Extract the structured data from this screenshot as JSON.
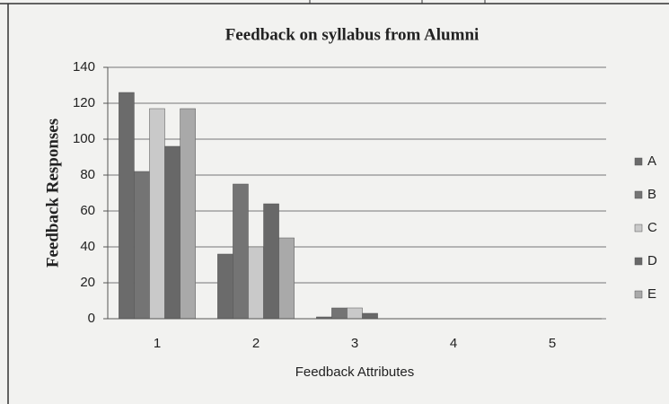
{
  "chart_data": {
    "type": "bar",
    "title": "Feedback on syllabus from Alumni",
    "x_label": "Feedback Attributes",
    "y_label": "Feedback Responses",
    "categories": [
      "1",
      "2",
      "3",
      "4",
      "5"
    ],
    "series": [
      {
        "name": "A",
        "color": "#6b6b6b",
        "values": [
          126,
          36,
          1,
          0,
          0
        ]
      },
      {
        "name": "B",
        "color": "#747474",
        "values": [
          82,
          75,
          6,
          0,
          0
        ]
      },
      {
        "name": "C",
        "color": "#c9c9c9",
        "values": [
          117,
          40,
          6,
          0,
          0
        ]
      },
      {
        "name": "D",
        "color": "#686868",
        "values": [
          96,
          64,
          3,
          0,
          0
        ]
      },
      {
        "name": "E",
        "color": "#a9a9a9",
        "values": [
          117,
          45,
          0,
          0,
          0
        ]
      }
    ],
    "ylim": [
      0,
      140
    ],
    "yticks": [
      0,
      20,
      40,
      60,
      80,
      100,
      120,
      140
    ],
    "grid": true,
    "legend": "right"
  }
}
